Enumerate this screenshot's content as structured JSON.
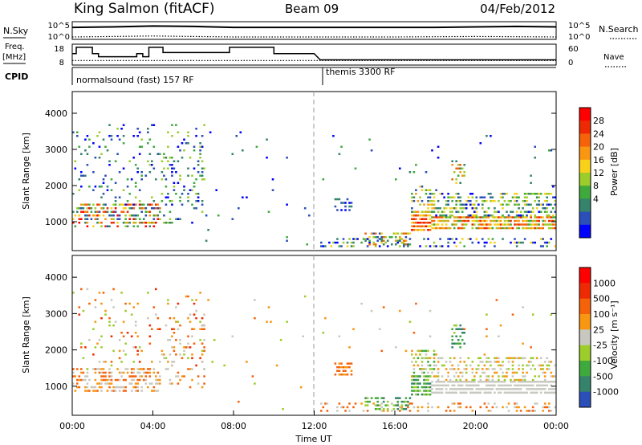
{
  "header": {
    "station": "King Salmon (fitACF)",
    "beam": "Beam 09",
    "date": "04/Feb/2012"
  },
  "left_labels": {
    "nsky": "N.Sky",
    "freq": "Freq.",
    "freq_unit": "[MHz]",
    "cpid": "CPID"
  },
  "right_labels": {
    "nsearch": "N.Search",
    "nave": "Nave"
  },
  "modes": {
    "first": "normalsound (fast) 157 RF",
    "second": "themis 3300 RF"
  },
  "chart_data": [
    {
      "type": "line",
      "panel": "noise",
      "ylabel": "N.Sky",
      "y2label": "N.Search",
      "yticks": [
        "10^5",
        "10^0"
      ],
      "y2ticks": [
        "10^5",
        "10^0"
      ],
      "xlim": [
        0,
        24
      ],
      "series": [
        {
          "style": "solid",
          "x": [
            0,
            2,
            4,
            6,
            8,
            10,
            12,
            14,
            16,
            18,
            20,
            22,
            24
          ],
          "y": [
            4.0,
            4.1,
            4.3,
            4.2,
            4.0,
            4.0,
            4.0,
            4.0,
            4.0,
            4.0,
            4.1,
            4.2,
            4.1
          ]
        },
        {
          "style": "dotted",
          "x": [
            0,
            4,
            8,
            12,
            16,
            20,
            24
          ],
          "y": [
            2.0,
            2.2,
            2.0,
            2.0,
            2.0,
            2.1,
            2.0
          ]
        }
      ]
    },
    {
      "type": "line",
      "panel": "frequency",
      "ylabel": "Freq. [MHz]",
      "y2label": "Nave",
      "yticks": [
        "18",
        "8"
      ],
      "y2ticks": [
        "60",
        "0"
      ],
      "ylim": [
        8,
        18
      ],
      "series": [
        {
          "style": "solid",
          "x": [
            0,
            0.2,
            0.2,
            1.0,
            1.0,
            1.3,
            1.3,
            1.5,
            1.5,
            3.2,
            3.2,
            3.5,
            3.5,
            3.8,
            3.8,
            4.5,
            4.5,
            7.8,
            7.8,
            10.0,
            10.0,
            12.0,
            12.3,
            24.0
          ],
          "y": [
            13.5,
            13.5,
            16.5,
            16.5,
            13.5,
            13.5,
            12.0,
            12.0,
            12.0,
            12.0,
            13.5,
            13.5,
            12.0,
            12.0,
            16.5,
            16.5,
            14.0,
            14.0,
            16.5,
            16.5,
            13.5,
            13.5,
            10.5,
            10.5
          ]
        },
        {
          "style": "dotted",
          "x": [
            0,
            24
          ],
          "y": [
            10.2,
            10.2
          ]
        }
      ]
    },
    {
      "type": "heatmap",
      "panel": "power",
      "ylabel": "Slant Range [km]",
      "yticks": [
        1000,
        2000,
        3000,
        4000
      ],
      "ylim": [
        200,
        4600
      ],
      "xlim": [
        0,
        24
      ],
      "colorbar_label": "Power [dB]",
      "colorbar_ticks": [
        "28",
        "24",
        "20",
        "16",
        "12",
        "8",
        "4"
      ],
      "colors": [
        "#0000ff",
        "#2a4fb8",
        "#35836b",
        "#3faa3c",
        "#9ccd2b",
        "#fad11a",
        "#f99612",
        "#f6620a",
        "#ed2a04",
        "#ff0000"
      ],
      "clusters": [
        {
          "x0": 0.0,
          "x1": 4.4,
          "y0": 800,
          "y1": 1500,
          "density": 0.55,
          "lo": 1,
          "hi": 9
        },
        {
          "x0": 0.0,
          "x1": 6.5,
          "y0": 1400,
          "y1": 3700,
          "density": 0.11,
          "lo": 0,
          "hi": 4
        },
        {
          "x0": 4.4,
          "x1": 6.5,
          "y0": 900,
          "y1": 2700,
          "density": 0.16,
          "lo": 0,
          "hi": 4
        },
        {
          "x0": 6.5,
          "x1": 12.0,
          "y0": 300,
          "y1": 3600,
          "density": 0.012,
          "lo": 0,
          "hi": 3
        },
        {
          "x0": 12.2,
          "x1": 24.0,
          "y0": 250,
          "y1": 550,
          "density": 0.3,
          "lo": 0,
          "hi": 5
        },
        {
          "x0": 13.0,
          "x1": 13.8,
          "y0": 1250,
          "y1": 1650,
          "density": 0.45,
          "lo": 0,
          "hi": 2
        },
        {
          "x0": 14.5,
          "x1": 16.8,
          "y0": 300,
          "y1": 700,
          "density": 0.5,
          "lo": 1,
          "hi": 7
        },
        {
          "x0": 16.8,
          "x1": 17.8,
          "y0": 700,
          "y1": 1300,
          "density": 0.9,
          "lo": 5,
          "hi": 9
        },
        {
          "x0": 16.8,
          "x1": 18.0,
          "y0": 1200,
          "y1": 2000,
          "density": 0.5,
          "lo": 1,
          "hi": 6
        },
        {
          "x0": 17.8,
          "x1": 24.0,
          "y0": 750,
          "y1": 1150,
          "density": 0.85,
          "lo": 3,
          "hi": 8
        },
        {
          "x0": 18.0,
          "x1": 24.0,
          "y0": 1100,
          "y1": 1800,
          "density": 0.45,
          "lo": 0,
          "hi": 5
        },
        {
          "x0": 18.8,
          "x1": 19.5,
          "y0": 2000,
          "y1": 2700,
          "density": 0.5,
          "lo": 2,
          "hi": 7
        },
        {
          "x0": 12.2,
          "x1": 24.0,
          "y0": 1800,
          "y1": 3400,
          "density": 0.015,
          "lo": 0,
          "hi": 3
        }
      ]
    },
    {
      "type": "heatmap",
      "panel": "velocity",
      "ylabel": "Slant Range [km]",
      "xlabel": "Time UT",
      "yticks": [
        1000,
        2000,
        3000,
        4000
      ],
      "ylim": [
        200,
        4600
      ],
      "xticks": [
        "00:00",
        "04:00",
        "08:00",
        "12:00",
        "16:00",
        "20:00",
        "00:00"
      ],
      "xlim": [
        0,
        24
      ],
      "colorbar_label": "Velocity [m s⁻¹]",
      "colorbar_ticks": [
        "1000",
        "500",
        "100",
        "25",
        "-25",
        "-100",
        "-500",
        "-1000"
      ],
      "colors": [
        "#2a4fb8",
        "#35836b",
        "#3faa3c",
        "#9ccd2b",
        "#c8c8c0",
        "#f99612",
        "#f6620a",
        "#ed2a04",
        "#ff0000"
      ],
      "clusters": [
        {
          "x0": 0.0,
          "x1": 4.4,
          "y0": 800,
          "y1": 1500,
          "density": 0.55,
          "lo": 4,
          "hi": 6
        },
        {
          "x0": 0.0,
          "x1": 6.5,
          "y0": 1400,
          "y1": 3700,
          "density": 0.11,
          "lo": 3,
          "hi": 7
        },
        {
          "x0": 4.4,
          "x1": 6.5,
          "y0": 900,
          "y1": 2700,
          "density": 0.16,
          "lo": 4,
          "hi": 6
        },
        {
          "x0": 6.5,
          "x1": 12.0,
          "y0": 300,
          "y1": 3600,
          "density": 0.012,
          "lo": 3,
          "hi": 6
        },
        {
          "x0": 12.2,
          "x1": 24.0,
          "y0": 250,
          "y1": 550,
          "density": 0.3,
          "lo": 4,
          "hi": 6
        },
        {
          "x0": 13.0,
          "x1": 13.8,
          "y0": 1250,
          "y1": 1650,
          "density": 0.45,
          "lo": 5,
          "hi": 6
        },
        {
          "x0": 14.5,
          "x1": 16.8,
          "y0": 300,
          "y1": 700,
          "density": 0.5,
          "lo": 1,
          "hi": 3
        },
        {
          "x0": 16.8,
          "x1": 17.8,
          "y0": 700,
          "y1": 1300,
          "density": 0.9,
          "lo": 1,
          "hi": 3
        },
        {
          "x0": 16.8,
          "x1": 18.0,
          "y0": 1200,
          "y1": 2000,
          "density": 0.5,
          "lo": 2,
          "hi": 5
        },
        {
          "x0": 17.8,
          "x1": 24.0,
          "y0": 750,
          "y1": 1150,
          "density": 0.85,
          "lo": 4,
          "hi": 4
        },
        {
          "x0": 18.0,
          "x1": 24.0,
          "y0": 1100,
          "y1": 1800,
          "density": 0.45,
          "lo": 3,
          "hi": 5
        },
        {
          "x0": 18.8,
          "x1": 19.5,
          "y0": 2000,
          "y1": 2700,
          "density": 0.5,
          "lo": 1,
          "hi": 3
        },
        {
          "x0": 12.2,
          "x1": 24.0,
          "y0": 1800,
          "y1": 3400,
          "density": 0.015,
          "lo": 3,
          "hi": 6
        }
      ]
    }
  ]
}
